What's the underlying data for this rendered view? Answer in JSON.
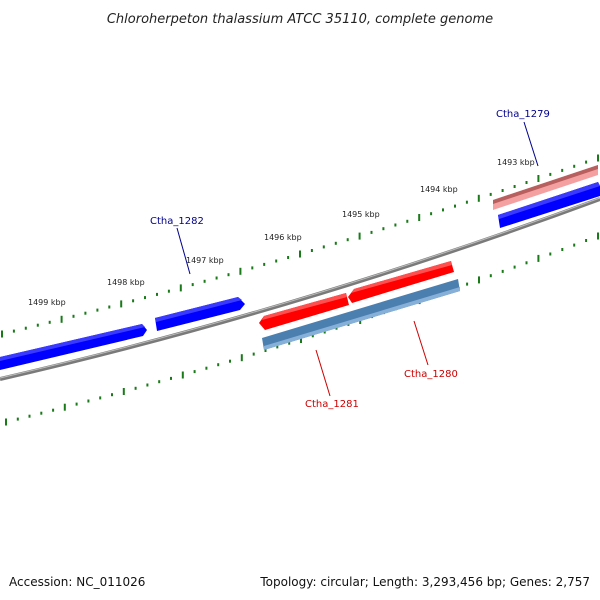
{
  "title": "Chloroherpeton thalassium ATCC 35110, complete genome",
  "footer": {
    "accession": "Accession: NC_011026",
    "topology": "Topology: circular; Length: 3,293,456 bp; Genes: 2,757"
  },
  "colors": {
    "backbone": "#7a7a7a",
    "forward_gene": "#0000ff",
    "reverse_gene": "#ff0000",
    "forward_label": "#00008b",
    "reverse_label": "#cc0000",
    "tick": "#1a7a1a",
    "gc_forward": "#e07070",
    "gc_reverse": "#4a7fb0"
  },
  "scale_ticks": [
    {
      "label": "1499 kbp"
    },
    {
      "label": "1498 kbp"
    },
    {
      "label": "1497 kbp"
    },
    {
      "label": "1496 kbp"
    },
    {
      "label": "1495 kbp"
    },
    {
      "label": "1494 kbp"
    },
    {
      "label": "1493 kbp"
    }
  ],
  "genes": [
    {
      "name": "Ctha_1279",
      "strand": "forward"
    },
    {
      "name": "Ctha_1280",
      "strand": "reverse"
    },
    {
      "name": "Ctha_1281",
      "strand": "reverse"
    },
    {
      "name": "Ctha_1282",
      "strand": "forward"
    }
  ]
}
